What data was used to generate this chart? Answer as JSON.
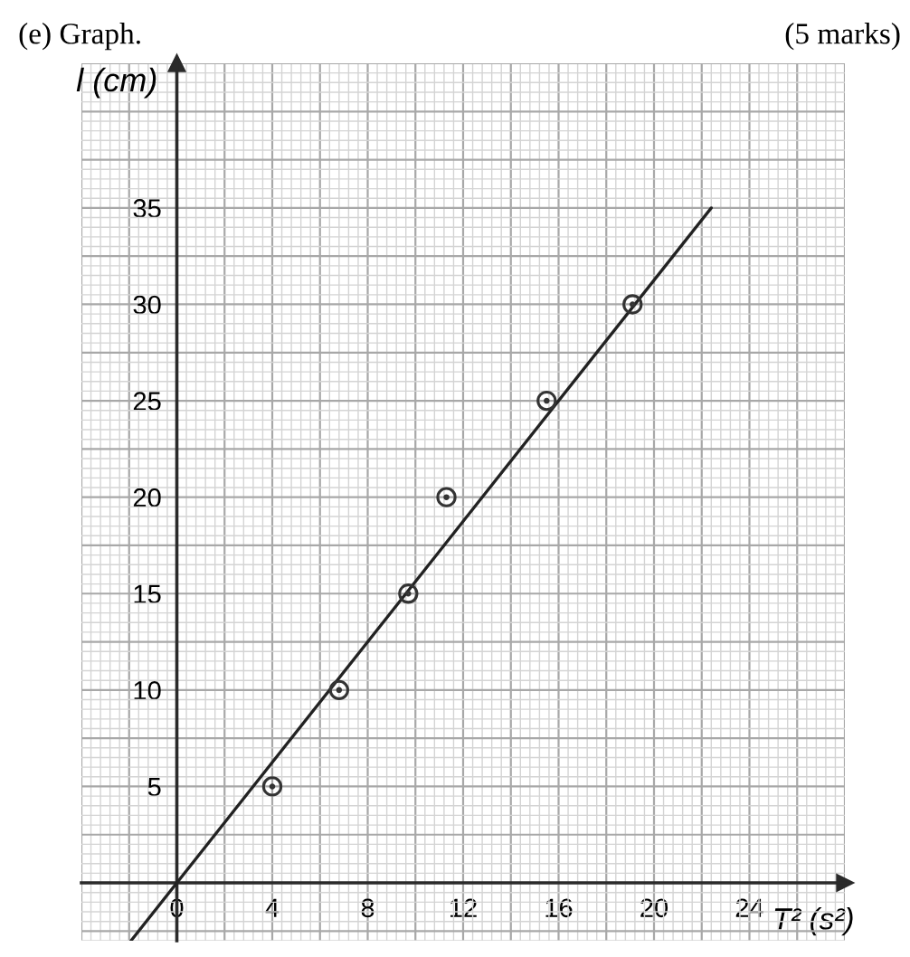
{
  "chart_data": {
    "type": "scatter",
    "title": "(e) Graph.",
    "xlabel": "T² (s²)",
    "ylabel": "l (cm)",
    "annotations": [
      "(5 marks)"
    ],
    "xlim": [
      -4,
      28
    ],
    "ylim": [
      -3,
      42.5
    ],
    "xticks": [
      {
        "value": -4,
        "label": null
      },
      {
        "value": -2,
        "label": null
      },
      0,
      {
        "value": 2,
        "label": null
      },
      4,
      {
        "value": 6,
        "label": null
      },
      8,
      {
        "value": 10,
        "label": null
      },
      12,
      {
        "value": 14,
        "label": null
      },
      16,
      {
        "value": 18,
        "label": null
      },
      20,
      {
        "value": 22,
        "label": null
      },
      24,
      {
        "value": 26,
        "label": null
      },
      {
        "value": 28,
        "label": null
      }
    ],
    "yticks": [
      {
        "value": -2.5,
        "label": null
      },
      {
        "value": 0,
        "label": null
      },
      {
        "value": 2.5,
        "label": null
      },
      5,
      {
        "value": 7.5,
        "label": null
      },
      10,
      {
        "value": 12.5,
        "label": null
      },
      15,
      {
        "value": 17.5,
        "label": null
      },
      20,
      {
        "value": 22.5,
        "label": null
      },
      25,
      {
        "value": 27.5,
        "label": null
      },
      30,
      {
        "value": 32.5,
        "label": null
      },
      35,
      {
        "value": 37.5,
        "label": null
      },
      {
        "value": 40,
        "label": null
      },
      {
        "value": 42.5,
        "label": null
      }
    ],
    "grid": true,
    "series": [
      {
        "marker": "circle",
        "color": "#333333",
        "x": [
          4.0,
          6.8,
          9.7,
          11.3,
          15.5,
          19.1
        ],
        "values": [
          5,
          10,
          15,
          20,
          25,
          30
        ]
      },
      {
        "type": "line",
        "line_style": "solid",
        "color": "#222222",
        "x": [
          -1.92,
          22.4
        ],
        "values": [
          -3.0,
          35.0
        ]
      }
    ]
  }
}
